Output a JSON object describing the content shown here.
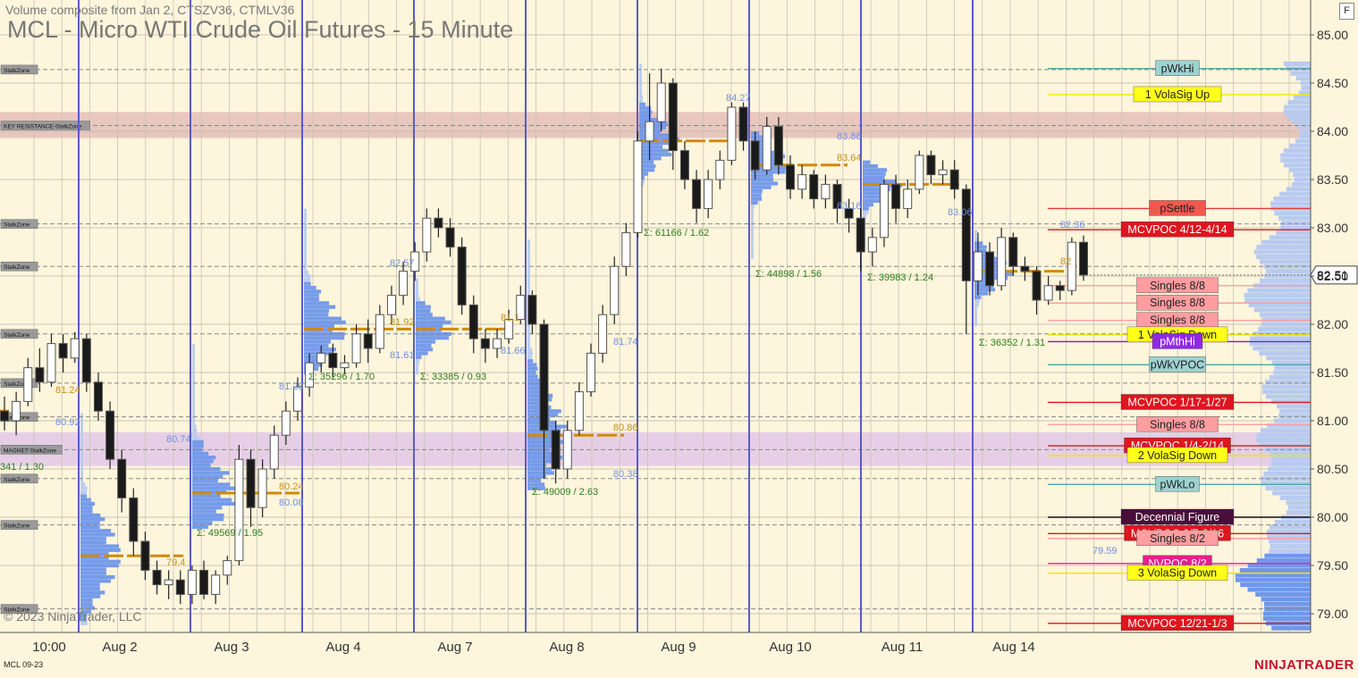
{
  "header": {
    "subtitle": "Volume composite from Jan 2, CTSZV36, CTMLV36",
    "title": "MCL - Micro WTI Crude Oil Futures - 15 Minute",
    "f_button": "F"
  },
  "footer": {
    "copyright": "© 2023 NinjaTrader, LLC",
    "contract": "MCL 09-23",
    "brand": "NINJATRADER"
  },
  "colors": {
    "background": "#fdf5dc",
    "session_line": "#5a5ac8",
    "candle_up": "#ffffff",
    "candle_down": "#1a1a1a",
    "poc": "#d18a0a",
    "profile_light": "#b8cbef",
    "profile_dark": "#6f97ea",
    "stalk_zone_line": "#888888"
  },
  "chart_data": {
    "type": "candlestick",
    "ylim": [
      78.8,
      85.25
    ],
    "y_ticks": [
      "85.00",
      "84.50",
      "84.00",
      "83.50",
      "83.00",
      "82.50",
      "82.00",
      "81.50",
      "81.00",
      "80.50",
      "80.00",
      "79.50",
      "79.00"
    ],
    "x_ticks": [
      "10:00",
      "Aug 2",
      "Aug 3",
      "Aug 4",
      "Aug 7",
      "Aug 8",
      "Aug 9",
      "Aug 10",
      "Aug 11",
      "Aug 14"
    ],
    "last_price": "82.51",
    "candles": [
      {
        "o": 81.1,
        "c": 81.0,
        "h": 81.25,
        "l": 80.9
      },
      {
        "o": 81.0,
        "c": 81.2,
        "h": 81.3,
        "l": 80.85
      },
      {
        "o": 81.2,
        "c": 81.55,
        "h": 81.65,
        "l": 81.15
      },
      {
        "o": 81.55,
        "c": 81.4,
        "h": 81.75,
        "l": 81.3
      },
      {
        "o": 81.4,
        "c": 81.8,
        "h": 81.9,
        "l": 81.35
      },
      {
        "o": 81.8,
        "c": 81.65,
        "h": 81.9,
        "l": 81.5
      },
      {
        "o": 81.65,
        "c": 81.85,
        "h": 81.92,
        "l": 81.6
      },
      {
        "o": 81.85,
        "c": 81.4,
        "h": 81.9,
        "l": 81.3
      },
      {
        "o": 81.4,
        "c": 81.1,
        "h": 81.5,
        "l": 81.0
      },
      {
        "o": 81.1,
        "c": 80.6,
        "h": 81.2,
        "l": 80.5
      },
      {
        "o": 80.6,
        "c": 80.2,
        "h": 80.7,
        "l": 80.05
      },
      {
        "o": 80.2,
        "c": 79.75,
        "h": 80.3,
        "l": 79.6
      },
      {
        "o": 79.75,
        "c": 79.45,
        "h": 79.85,
        "l": 79.35
      },
      {
        "o": 79.45,
        "c": 79.3,
        "h": 79.55,
        "l": 79.2
      },
      {
        "o": 79.3,
        "c": 79.35,
        "h": 79.45,
        "l": 79.15
      },
      {
        "o": 79.35,
        "c": 79.2,
        "h": 79.45,
        "l": 79.1
      },
      {
        "o": 79.2,
        "c": 79.45,
        "h": 79.5,
        "l": 79.1
      },
      {
        "o": 79.45,
        "c": 79.2,
        "h": 79.55,
        "l": 79.15
      },
      {
        "o": 79.2,
        "c": 79.4,
        "h": 79.45,
        "l": 79.1
      },
      {
        "o": 79.4,
        "c": 79.55,
        "h": 79.6,
        "l": 79.3
      },
      {
        "o": 79.55,
        "c": 80.6,
        "h": 80.75,
        "l": 79.5
      },
      {
        "o": 80.6,
        "c": 80.1,
        "h": 80.7,
        "l": 79.9
      },
      {
        "o": 80.1,
        "c": 80.5,
        "h": 80.6,
        "l": 80.0
      },
      {
        "o": 80.5,
        "c": 80.85,
        "h": 80.95,
        "l": 80.4
      },
      {
        "o": 80.85,
        "c": 81.1,
        "h": 81.2,
        "l": 80.75
      },
      {
        "o": 81.1,
        "c": 81.35,
        "h": 81.45,
        "l": 81.0
      },
      {
        "o": 81.35,
        "c": 81.6,
        "h": 81.7,
        "l": 81.25
      },
      {
        "o": 81.6,
        "c": 81.7,
        "h": 81.78,
        "l": 81.5
      },
      {
        "o": 81.7,
        "c": 81.55,
        "h": 81.8,
        "l": 81.45
      },
      {
        "o": 81.55,
        "c": 81.6,
        "h": 81.68,
        "l": 81.48
      },
      {
        "o": 81.6,
        "c": 81.9,
        "h": 82.0,
        "l": 81.55
      },
      {
        "o": 81.9,
        "c": 81.75,
        "h": 82.05,
        "l": 81.6
      },
      {
        "o": 81.75,
        "c": 82.1,
        "h": 82.2,
        "l": 81.7
      },
      {
        "o": 82.1,
        "c": 82.3,
        "h": 82.4,
        "l": 82.0
      },
      {
        "o": 82.3,
        "c": 82.55,
        "h": 82.65,
        "l": 82.2
      },
      {
        "o": 82.55,
        "c": 82.75,
        "h": 82.85,
        "l": 82.45
      },
      {
        "o": 82.75,
        "c": 83.1,
        "h": 83.2,
        "l": 82.65
      },
      {
        "o": 83.1,
        "c": 83.0,
        "h": 83.2,
        "l": 82.9
      },
      {
        "o": 83.0,
        "c": 82.8,
        "h": 83.1,
        "l": 82.7
      },
      {
        "o": 82.8,
        "c": 82.2,
        "h": 82.9,
        "l": 82.1
      },
      {
        "o": 82.2,
        "c": 81.85,
        "h": 82.3,
        "l": 81.7
      },
      {
        "o": 81.85,
        "c": 81.75,
        "h": 81.95,
        "l": 81.6
      },
      {
        "o": 81.75,
        "c": 81.85,
        "h": 81.95,
        "l": 81.65
      },
      {
        "o": 81.85,
        "c": 82.05,
        "h": 82.15,
        "l": 81.8
      },
      {
        "o": 82.05,
        "c": 82.3,
        "h": 82.4,
        "l": 82.0
      },
      {
        "o": 82.3,
        "c": 82.0,
        "h": 82.35,
        "l": 81.9
      },
      {
        "o": 82.0,
        "c": 80.9,
        "h": 82.05,
        "l": 80.4
      },
      {
        "o": 80.9,
        "c": 80.5,
        "h": 81.0,
        "l": 80.35
      },
      {
        "o": 80.5,
        "c": 80.9,
        "h": 81.0,
        "l": 80.4
      },
      {
        "o": 80.9,
        "c": 81.3,
        "h": 81.4,
        "l": 80.85
      },
      {
        "o": 81.3,
        "c": 81.7,
        "h": 81.8,
        "l": 81.25
      },
      {
        "o": 81.7,
        "c": 82.1,
        "h": 82.2,
        "l": 81.6
      },
      {
        "o": 82.1,
        "c": 82.6,
        "h": 82.7,
        "l": 82.0
      },
      {
        "o": 82.6,
        "c": 82.95,
        "h": 83.05,
        "l": 82.5
      },
      {
        "o": 82.95,
        "c": 83.9,
        "h": 84.0,
        "l": 82.9
      },
      {
        "o": 83.9,
        "c": 84.1,
        "h": 84.6,
        "l": 83.7
      },
      {
        "o": 84.1,
        "c": 84.5,
        "h": 84.65,
        "l": 84.0
      },
      {
        "o": 84.5,
        "c": 83.8,
        "h": 84.55,
        "l": 83.6
      },
      {
        "o": 83.8,
        "c": 83.5,
        "h": 83.9,
        "l": 83.4
      },
      {
        "o": 83.5,
        "c": 83.2,
        "h": 83.6,
        "l": 83.05
      },
      {
        "o": 83.2,
        "c": 83.5,
        "h": 83.6,
        "l": 83.1
      },
      {
        "o": 83.5,
        "c": 83.7,
        "h": 83.8,
        "l": 83.4
      },
      {
        "o": 83.7,
        "c": 84.25,
        "h": 84.3,
        "l": 83.65
      },
      {
        "o": 84.25,
        "c": 83.9,
        "h": 84.3,
        "l": 83.8
      },
      {
        "o": 83.9,
        "c": 83.6,
        "h": 84.0,
        "l": 83.5
      },
      {
        "o": 83.6,
        "c": 84.05,
        "h": 84.15,
        "l": 83.55
      },
      {
        "o": 84.05,
        "c": 83.65,
        "h": 84.15,
        "l": 83.55
      },
      {
        "o": 83.65,
        "c": 83.4,
        "h": 83.75,
        "l": 83.3
      },
      {
        "o": 83.4,
        "c": 83.55,
        "h": 83.65,
        "l": 83.3
      },
      {
        "o": 83.55,
        "c": 83.3,
        "h": 83.6,
        "l": 83.2
      },
      {
        "o": 83.3,
        "c": 83.45,
        "h": 83.55,
        "l": 83.2
      },
      {
        "o": 83.45,
        "c": 83.2,
        "h": 83.5,
        "l": 83.05
      },
      {
        "o": 83.2,
        "c": 83.1,
        "h": 83.3,
        "l": 82.95
      },
      {
        "o": 83.1,
        "c": 82.75,
        "h": 83.2,
        "l": 82.55
      },
      {
        "o": 82.75,
        "c": 82.9,
        "h": 83.0,
        "l": 82.6
      },
      {
        "o": 82.9,
        "c": 83.45,
        "h": 83.5,
        "l": 82.8
      },
      {
        "o": 83.45,
        "c": 83.2,
        "h": 83.55,
        "l": 83.05
      },
      {
        "o": 83.2,
        "c": 83.4,
        "h": 83.5,
        "l": 83.1
      },
      {
        "o": 83.4,
        "c": 83.75,
        "h": 83.8,
        "l": 83.35
      },
      {
        "o": 83.75,
        "c": 83.55,
        "h": 83.8,
        "l": 83.45
      },
      {
        "o": 83.55,
        "c": 83.6,
        "h": 83.7,
        "l": 83.45
      },
      {
        "o": 83.6,
        "c": 83.4,
        "h": 83.7,
        "l": 83.3
      },
      {
        "o": 83.4,
        "c": 82.45,
        "h": 83.45,
        "l": 81.9
      },
      {
        "o": 82.45,
        "c": 82.75,
        "h": 82.95,
        "l": 82.3
      },
      {
        "o": 82.75,
        "c": 82.4,
        "h": 82.85,
        "l": 82.3
      },
      {
        "o": 82.4,
        "c": 82.9,
        "h": 83.0,
        "l": 82.35
      },
      {
        "o": 82.9,
        "c": 82.6,
        "h": 82.95,
        "l": 82.5
      },
      {
        "o": 82.6,
        "c": 82.55,
        "h": 82.7,
        "l": 82.45
      },
      {
        "o": 82.55,
        "c": 82.25,
        "h": 82.6,
        "l": 82.1
      },
      {
        "o": 82.25,
        "c": 82.4,
        "h": 82.5,
        "l": 82.2
      },
      {
        "o": 82.4,
        "c": 82.35,
        "h": 82.45,
        "l": 82.25
      },
      {
        "o": 82.35,
        "c": 82.85,
        "h": 82.9,
        "l": 82.3
      },
      {
        "o": 82.85,
        "c": 82.51,
        "h": 82.92,
        "l": 82.45
      }
    ],
    "session_labels": [
      "Σ: 49569 / 1.95",
      "Σ: 35296 / 1.70",
      "Σ: 33385 / 0.93",
      "Σ: 49009 / 2.63",
      "Σ: 61166 / 1.62",
      "Σ: 44898 / 1.56",
      "Σ: 39983 / 1.24",
      "Σ: 36352 / 1.31"
    ],
    "profile_value_labels": [
      "81.24",
      "80.92",
      "80.74",
      "79.4",
      "80.24",
      "80.08",
      "81.28",
      "82.57",
      "81.61",
      "81.92",
      "81.1",
      "81.66",
      "80.86",
      "80.38",
      "81.74",
      "84.27",
      "83.88",
      "83.64",
      "83.16",
      "83.06",
      "82.36",
      "82",
      "79.59"
    ],
    "stalk_zones": [
      {
        "label": "StalkZone",
        "price": 84.64
      },
      {
        "label": "KEY RESISTANCE-StalkZone",
        "price": 84.06,
        "band": [
          83.93,
          84.2
        ],
        "band_color": "#e8c7bf"
      },
      {
        "label": "StalkZone",
        "price": 83.04
      },
      {
        "label": "StalkZone",
        "price": 82.6
      },
      {
        "label": "StalkZone",
        "price": 81.9
      },
      {
        "label": "StalkZone",
        "price": 81.39
      },
      {
        "label": "StalkZone",
        "price": 81.04
      },
      {
        "label": "MAGNET-StalkZone",
        "price": 80.7,
        "band": [
          80.53,
          80.88
        ],
        "band_color": "#e6cfe6"
      },
      {
        "label": "StalkZone",
        "price": 80.4
      },
      {
        "label": "StalkZone",
        "price": 79.92
      },
      {
        "label": "StalkZone",
        "price": 79.05
      }
    ],
    "left_cut_label": "341 / 1.30",
    "level_tags": [
      {
        "label": "pWkHi",
        "price": 84.65,
        "bg": "#9ed2d2",
        "line": "#4aa7a7"
      },
      {
        "label": "1 VolaSig Up",
        "price": 84.38,
        "bg": "#ffff1a",
        "line": "#f5e600"
      },
      {
        "label": "pSettle",
        "price": 83.2,
        "bg": "#f05a4e",
        "line": "#e03b3b"
      },
      {
        "label": "MCVPOC 4/12-4/14",
        "price": 82.98,
        "bg": "#e0141e",
        "line": "#e0141e",
        "fg": "#ffffff"
      },
      {
        "label": "Singles 8/8",
        "price": 82.4,
        "bg": "#ff9da0",
        "line": "#ff9da0"
      },
      {
        "label": "Singles 8/8",
        "price": 82.22,
        "bg": "#ff9da0",
        "line": "#ff9da0"
      },
      {
        "label": "Singles 8/8",
        "price": 82.04,
        "bg": "#ff9da0",
        "line": "#ff9da0"
      },
      {
        "label": "1 VolaSig Down",
        "price": 81.89,
        "bg": "#ffff1a",
        "line": "#f5e600"
      },
      {
        "label": "pMthHi",
        "price": 81.82,
        "bg": "#8f29e8",
        "line": "#7a1ed8",
        "fg": "#ffffff"
      },
      {
        "label": "pWkVPOC",
        "price": 81.58,
        "bg": "#9ed2d2",
        "line": "#4aa7a7"
      },
      {
        "label": "MCVPOC 1/17-1/27",
        "price": 81.19,
        "bg": "#e0141e",
        "line": "#e0141e",
        "fg": "#ffffff"
      },
      {
        "label": "Singles 8/8",
        "price": 80.96,
        "bg": "#ff9da0",
        "line": "#ff9da0"
      },
      {
        "label": "MCVPOC 1/4-2/14",
        "price": 80.74,
        "bg": "#e0141e",
        "line": "#e0141e",
        "fg": "#ffffff"
      },
      {
        "label": "2 VolaSig Down",
        "price": 80.64,
        "bg": "#ffff1a",
        "line": "#f5e600"
      },
      {
        "label": "pWkLo",
        "price": 80.34,
        "bg": "#9ed2d2",
        "line": "#4aa7a7"
      },
      {
        "label": "Decennial Figure",
        "price": 80.0,
        "bg": "#4a0e3a",
        "line": "#1a0a12",
        "fg": "#ffffff"
      },
      {
        "label": "MCVPOC 2/7-2/16",
        "price": 79.83,
        "bg": "#e0141e",
        "line": "#e0141e",
        "fg": "#ffffff"
      },
      {
        "label": "Singles 8/2",
        "price": 79.78,
        "bg": "#ff9da0",
        "line": "#ff9da0"
      },
      {
        "label": "NVPOC 8/2",
        "price": 79.52,
        "bg": "#e81e8c",
        "line": "#e81e8c",
        "fg": "#ffffff"
      },
      {
        "label": "3 VolaSig Down",
        "price": 79.42,
        "bg": "#ffff1a",
        "line": "#f5e600"
      },
      {
        "label": "MCVPOC 12/21-1/3",
        "price": 78.9,
        "bg": "#e0141e",
        "line": "#e0141e",
        "fg": "#ffffff"
      }
    ]
  }
}
